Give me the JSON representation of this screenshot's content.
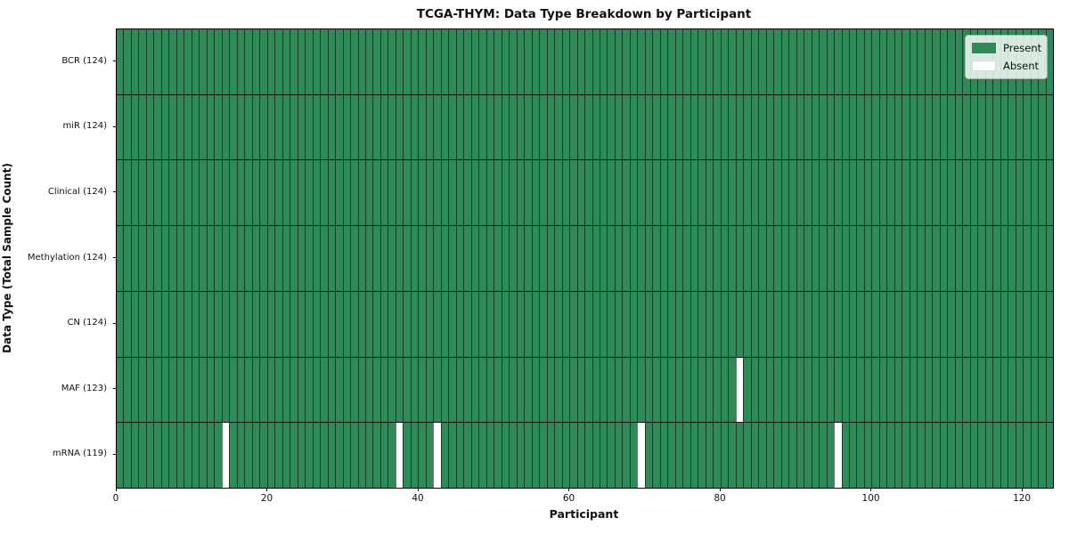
{
  "chart_data": {
    "type": "heatmap",
    "title": "TCGA-THYM: Data Type Breakdown by Participant",
    "xlabel": "Participant",
    "ylabel": "Data Type (Total Sample Count)",
    "n_participants": 124,
    "x_range": [
      0,
      124
    ],
    "x_ticks": [
      0,
      20,
      40,
      60,
      80,
      100,
      120
    ],
    "legend_position": "upper right",
    "colors": {
      "present": "#2e8b57",
      "absent": "#ffffff",
      "cell_edge": "rgba(0,0,0,0.55)",
      "row_edge": "#141414",
      "spine": "#000000"
    },
    "legend": [
      {
        "label": "Present",
        "color": "#2e8b57"
      },
      {
        "label": "Absent",
        "color": "#ffffff"
      }
    ],
    "rows": [
      {
        "label": "BCR (124)",
        "total_samples": 124,
        "absent_participants": []
      },
      {
        "label": "miR (124)",
        "total_samples": 124,
        "absent_participants": []
      },
      {
        "label": "Clinical (124)",
        "total_samples": 124,
        "absent_participants": []
      },
      {
        "label": "Methylation (124)",
        "total_samples": 124,
        "absent_participants": []
      },
      {
        "label": "CN (124)",
        "total_samples": 124,
        "absent_participants": []
      },
      {
        "label": "MAF (123)",
        "total_samples": 123,
        "absent_participants": [
          82
        ]
      },
      {
        "label": "mRNA (119)",
        "total_samples": 119,
        "absent_participants": [
          14,
          37,
          42,
          69,
          95
        ]
      }
    ]
  }
}
